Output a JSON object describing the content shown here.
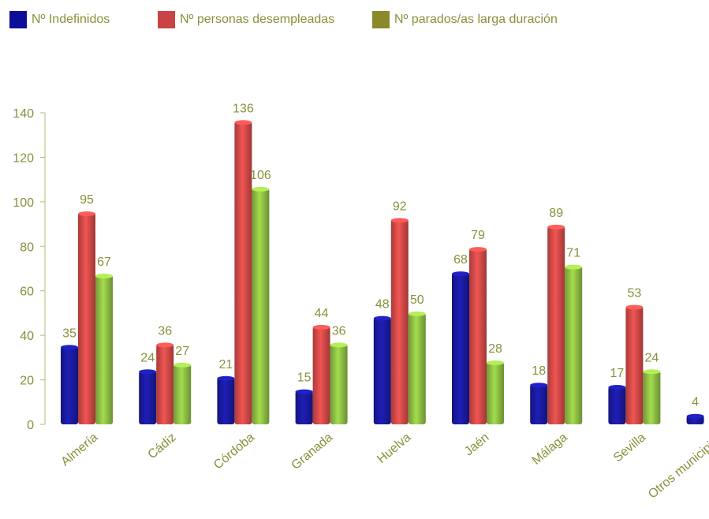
{
  "chart_data": {
    "type": "bar",
    "categories": [
      "Almería",
      "Cádiz",
      "Córdoba",
      "Granada",
      "Huelva",
      "Jaén",
      "Málaga",
      "Sevilla",
      "Otros municipios"
    ],
    "series": [
      {
        "name": "Nº Indefinidos",
        "color": "#1a1aa0",
        "values": [
          35,
          24,
          21,
          15,
          48,
          68,
          18,
          17,
          4
        ]
      },
      {
        "name": "Nº personas desempleadas",
        "color": "#d24a48",
        "values": [
          95,
          36,
          136,
          44,
          92,
          79,
          89,
          53,
          null
        ]
      },
      {
        "name": "Nº parados/as larga duración",
        "color": "#8fbf45",
        "values": [
          67,
          27,
          106,
          36,
          50,
          28,
          71,
          24,
          null
        ]
      }
    ],
    "y_ticks": [
      "0",
      "20",
      "40",
      "60",
      "80",
      "100",
      "120",
      "140"
    ],
    "ylim": [
      0,
      140
    ],
    "legend_position": "top-left",
    "grid": false,
    "legend_swatch_colors": [
      "#0d0d9a",
      "#c94444",
      "#8a8a2a"
    ]
  }
}
